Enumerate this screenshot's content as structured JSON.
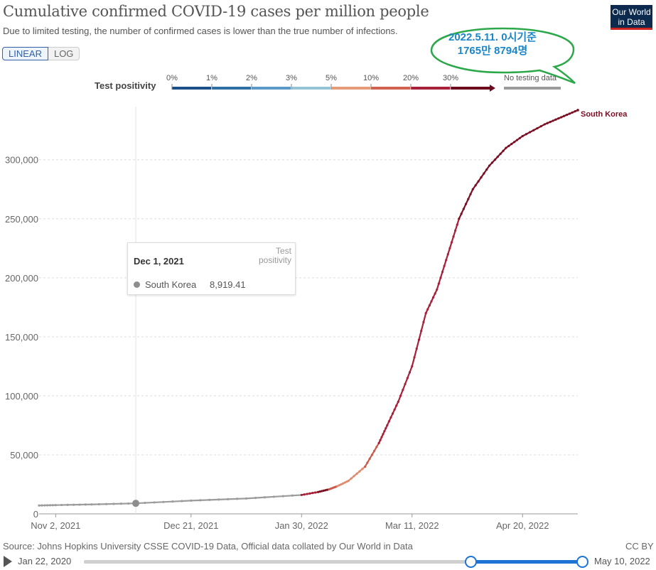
{
  "header": {
    "title": "Cumulative confirmed COVID-19 cases per million people",
    "subtitle": "Due to limited testing, the number of confirmed cases is lower than the true number of infections.",
    "logo_line1": "Our World",
    "logo_line2": "in Data"
  },
  "scale_toggle": {
    "linear": "LINEAR",
    "log": "LOG",
    "selected": "LINEAR"
  },
  "callout": {
    "line1": "2022.5.11. 0시기준",
    "line2": "1765만 8794명",
    "border_color": "#2ca84a"
  },
  "legend": {
    "title": "Test positivity",
    "stops": [
      "0%",
      "1%",
      "2%",
      "3%",
      "5%",
      "10%",
      "20%",
      "30%"
    ],
    "colors": [
      "#1b4f8a",
      "#2f6fa8",
      "#5b9ac8",
      "#94c4d6",
      "#e69c79",
      "#d2614f",
      "#a8203a",
      "#6e0a1e"
    ],
    "no_data_label": "No testing data",
    "no_data_color": "#9b9b9b"
  },
  "tooltip": {
    "date": "Dec 1, 2021",
    "column_header": "Test positivity",
    "country": "South Korea",
    "value": "8,919.41"
  },
  "chart_data": {
    "type": "line",
    "title": "Cumulative confirmed COVID-19 cases per million people",
    "xlabel": "",
    "ylabel": "",
    "x_tick_labels": [
      "Nov 2, 2021",
      "Dec 21, 2021",
      "Jan 30, 2022",
      "Mar 11, 2022",
      "Apr 20, 2022"
    ],
    "x_range": [
      "Oct 27, 2021",
      "May 10, 2022"
    ],
    "y_ticks": [
      0,
      50000,
      100000,
      150000,
      200000,
      250000,
      300000
    ],
    "y_tick_labels": [
      "0",
      "50,000",
      "100,000",
      "150,000",
      "200,000",
      "250,000",
      "300,000"
    ],
    "ylim": [
      0,
      345000
    ],
    "grid": "horizontal",
    "series": [
      {
        "name": "South Korea",
        "color_mode": "test positivity",
        "points": [
          {
            "date": "2021-10-27",
            "value": 7100,
            "band": "nodata"
          },
          {
            "date": "2021-11-02",
            "value": 7400,
            "band": "nodata"
          },
          {
            "date": "2021-11-15",
            "value": 8000,
            "band": "nodata"
          },
          {
            "date": "2021-12-01",
            "value": 8919,
            "band": "nodata"
          },
          {
            "date": "2021-12-21",
            "value": 11200,
            "band": "nodata"
          },
          {
            "date": "2022-01-10",
            "value": 13000,
            "band": "nodata"
          },
          {
            "date": "2022-01-30",
            "value": 16000,
            "band": "nodata"
          },
          {
            "date": "2022-02-05",
            "value": 18500,
            "band": "20-30%"
          },
          {
            "date": "2022-02-09",
            "value": 20800,
            "band": "30%+"
          },
          {
            "date": "2022-02-12",
            "value": 23500,
            "band": "10-20%"
          },
          {
            "date": "2022-02-16",
            "value": 28000,
            "band": "5-10%"
          },
          {
            "date": "2022-02-22",
            "value": 40000,
            "band": "5-10%"
          },
          {
            "date": "2022-02-27",
            "value": 60000,
            "band": "10-20%"
          },
          {
            "date": "2022-03-02",
            "value": 75000,
            "band": "20-30%"
          },
          {
            "date": "2022-03-06",
            "value": 95000,
            "band": "20-30%"
          },
          {
            "date": "2022-03-11",
            "value": 125000,
            "band": "20-30%"
          },
          {
            "date": "2022-03-16",
            "value": 170000,
            "band": "20-30%"
          },
          {
            "date": "2022-03-20",
            "value": 190000,
            "band": "20-30%"
          },
          {
            "date": "2022-03-24",
            "value": 220000,
            "band": "20-30%"
          },
          {
            "date": "2022-03-28",
            "value": 250000,
            "band": "20-30%"
          },
          {
            "date": "2022-04-02",
            "value": 275000,
            "band": "30%+"
          },
          {
            "date": "2022-04-08",
            "value": 295000,
            "band": "30%+"
          },
          {
            "date": "2022-04-14",
            "value": 310000,
            "band": "30%+"
          },
          {
            "date": "2022-04-20",
            "value": 320000,
            "band": "30%+"
          },
          {
            "date": "2022-04-28",
            "value": 330000,
            "band": "30%+"
          },
          {
            "date": "2022-05-04",
            "value": 336000,
            "band": "30%+"
          },
          {
            "date": "2022-05-10",
            "value": 342000,
            "band": "30%+"
          }
        ],
        "end_label": "South Korea"
      }
    ],
    "hover_date": "2021-12-01",
    "band_colors": {
      "nodata": "#9b9b9b",
      "5-10%": "#e08a6e",
      "10-20%": "#c75b4d",
      "20-30%": "#a6203a",
      "30%+": "#7a0f24"
    }
  },
  "footer": {
    "source": "Source: Johns Hopkins University CSSE COVID-19 Data, Official data collated by Our World in Data",
    "license": "CC BY",
    "timeline_start": "Jan 22, 2020",
    "timeline_end": "May 10, 2022",
    "timeline_selection_start_fraction": 0.775,
    "timeline_selection_end_fraction": 1.0
  }
}
